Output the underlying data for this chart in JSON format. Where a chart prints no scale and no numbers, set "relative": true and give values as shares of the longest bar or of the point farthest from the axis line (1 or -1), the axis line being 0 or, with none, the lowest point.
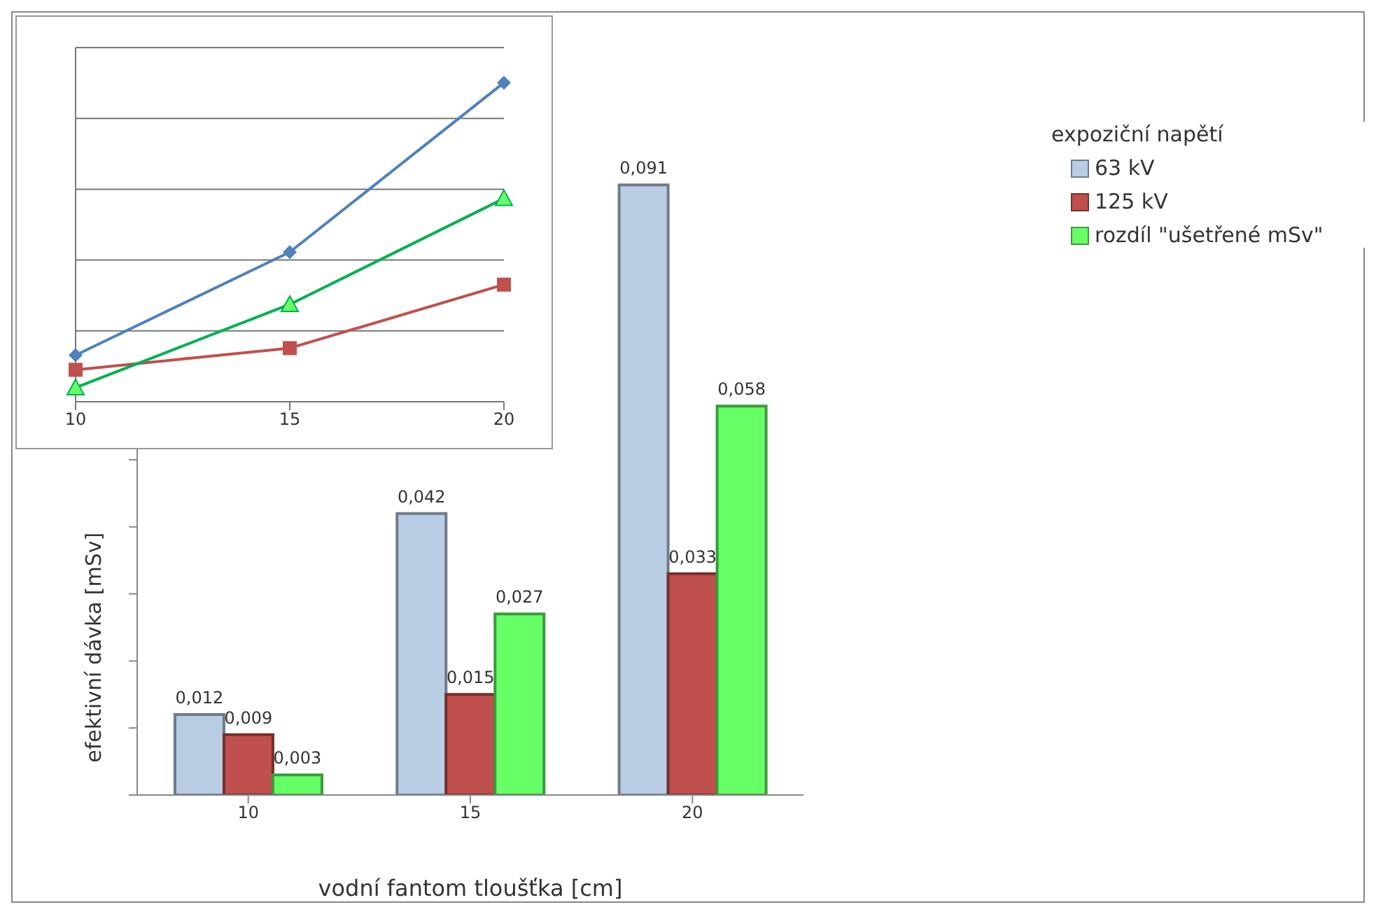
{
  "chart_data": [
    {
      "type": "bar",
      "xlabel": "vodní fantom tloušťka [cm]",
      "ylabel": "efektivní dávka [mSv]",
      "legend_title": "expoziční napětí",
      "categories": [
        "10",
        "15",
        "20"
      ],
      "series": [
        {
          "name": "63 kV",
          "color": "#b9cde5",
          "values": [
            0.012,
            0.042,
            0.091
          ],
          "value_labels": [
            "0,012",
            "0,042",
            "0,091"
          ]
        },
        {
          "name": "125 kV",
          "color": "#c0504d",
          "values": [
            0.009,
            0.015,
            0.033
          ],
          "value_labels": [
            "0,009",
            "0,015",
            "0,033"
          ]
        },
        {
          "name": "rozdíl \"ušetřené mSv\"",
          "color": "#66ff66",
          "values": [
            0.003,
            0.027,
            0.058
          ],
          "value_labels": [
            "0,003",
            "0,027",
            "0,058"
          ]
        }
      ],
      "ylim": [
        0,
        0.1
      ],
      "yticks": [
        {
          "value": 0,
          "label": null
        },
        {
          "value": 0.01,
          "label": null
        },
        {
          "value": 0.02,
          "label": null
        },
        {
          "value": 0.03,
          "label": null
        },
        {
          "value": 0.04,
          "label": null
        },
        {
          "value": 0.05,
          "label": null
        },
        {
          "value": 0.06,
          "label": null
        },
        {
          "value": 0.07,
          "label": null
        },
        {
          "value": 0.08,
          "label": null
        },
        {
          "value": 0.09,
          "label": null
        },
        {
          "value": 0.1,
          "label": null
        }
      ],
      "tick_labels": "x",
      "legend": "top right"
    },
    {
      "type": "line",
      "relative": true,
      "categories": [
        "10",
        "15",
        "20"
      ],
      "grid": "y",
      "series": [
        {
          "color": "#4f81bd",
          "marker": "diamond",
          "values": [
            0.146,
            0.469,
            1
          ]
        },
        {
          "color": "#c0504d",
          "marker": "square",
          "values": [
            0.1,
            0.168,
            0.367
          ]
        },
        {
          "color": "#00b050",
          "marker": "triangle",
          "values": [
            0.044,
            0.305,
            0.637
          ]
        }
      ]
    }
  ]
}
